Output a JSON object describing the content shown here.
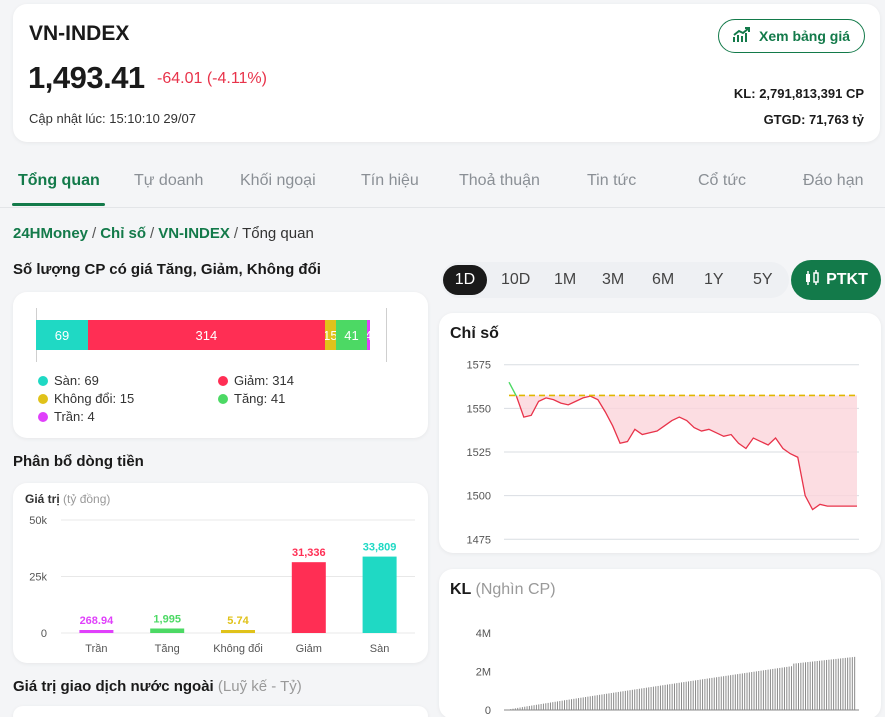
{
  "header": {
    "index_name": "VN-INDEX",
    "price": "1,493.41",
    "change": "-64.01 (-4.11%)",
    "updated": "Cập nhật lúc: 15:10:10 29/07",
    "board_button": "Xem bảng giá",
    "volume": "KL: 2,791,813,391 CP",
    "value": "GTGD: 71,763 tỷ"
  },
  "tabs": [
    "Tổng quan",
    "Tự doanh",
    "Khối ngoại",
    "Tín hiệu",
    "Thoả thuận",
    "Tin tức",
    "Cổ tức",
    "Đáo hạn"
  ],
  "breadcrumb": {
    "home": "24HMoney",
    "section": "Chỉ số",
    "index": "VN-INDEX",
    "current": "Tổng quan"
  },
  "breadth": {
    "title": "Số lượng CP có giá Tăng, Giảm, Không đổi",
    "segments": [
      {
        "name": "Sàn",
        "value": 69,
        "color": "#1fd9c4"
      },
      {
        "name": "Giảm",
        "value": 314,
        "color": "#ff2e54"
      },
      {
        "name": "Không đổi",
        "value": 15,
        "color": "#e0c21a"
      },
      {
        "name": "Tăng",
        "value": 41,
        "color": "#4cd964"
      },
      {
        "name": "Trần",
        "value": 4,
        "color": "#e040fb"
      }
    ],
    "legend": [
      "Sàn: 69",
      "Giảm: 314",
      "Không đổi: 15",
      "Tăng: 41",
      "Trần: 4"
    ]
  },
  "flow": {
    "title": "Phân bổ dòng tiền",
    "unit_label": "Giá trị",
    "unit_note": "(tỷ đồng)"
  },
  "foreign": {
    "title": "Giá trị giao dịch nước ngoài",
    "note": "(Luỹ kế - Tỷ)"
  },
  "periods": [
    "1D",
    "10D",
    "1M",
    "3M",
    "6M",
    "1Y",
    "5Y"
  ],
  "active_period": "1D",
  "ptkt_label": "PTKT",
  "index_chart": {
    "title": "Chỉ số"
  },
  "volume_chart": {
    "title": "KL",
    "note": "(Nghìn CP)"
  },
  "colors": {
    "brand": "#137a4a",
    "down": "#e8334a",
    "up": "#4cd964",
    "ref": "#e0b800"
  },
  "chart_data": [
    {
      "type": "bar",
      "title": "Phân bổ dòng tiền",
      "ylabel": "Giá trị (tỷ đồng)",
      "categories": [
        "Trần",
        "Tăng",
        "Không đổi",
        "Giảm",
        "Sàn"
      ],
      "values": [
        268.94,
        1995,
        5.74,
        31336,
        33809
      ],
      "value_labels": [
        "268.94",
        "1,995",
        "5.74",
        "31,336",
        "33,809"
      ],
      "colors": [
        "#e040fb",
        "#4cd964",
        "#e0c21a",
        "#ff2e54",
        "#1fd9c4"
      ],
      "yticks": [
        "0",
        "25k",
        "50k"
      ],
      "ylim": [
        0,
        50000
      ]
    },
    {
      "type": "line",
      "title": "Chỉ số",
      "reference": 1557.42,
      "ylim": [
        1470,
        1580
      ],
      "yticks": [
        1475,
        1500,
        1525,
        1550,
        1575
      ],
      "values": [
        1565,
        1557,
        1545,
        1546,
        1554,
        1556,
        1555,
        1553,
        1552,
        1554,
        1556,
        1557,
        1555,
        1548,
        1540,
        1530,
        1531,
        1538,
        1535,
        1536,
        1537,
        1540,
        1543,
        1545,
        1543,
        1539,
        1537,
        1538,
        1536,
        1534,
        1535,
        1530,
        1527,
        1533,
        1531,
        1529,
        1533,
        1527,
        1524,
        1522,
        1500,
        1492,
        1495,
        1494,
        1494,
        1494,
        1494,
        1494
      ]
    },
    {
      "type": "bar",
      "title": "KL",
      "ylabel": "(Nghìn CP)",
      "yticks": [
        "0",
        "2M",
        "4M"
      ],
      "ylim": [
        0,
        4000000
      ]
    }
  ]
}
